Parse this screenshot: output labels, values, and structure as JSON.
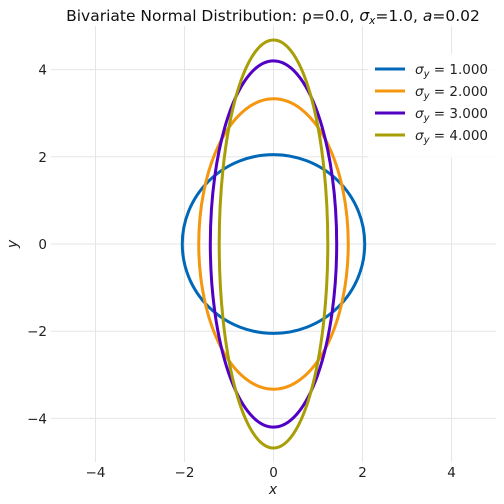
{
  "chart_data": {
    "type": "line",
    "title": "Bivariate Normal Distribution: ρ=0.0, σₓ=1.0, a=0.02",
    "xlabel": "x",
    "ylabel": "y",
    "xlim": [
      -5.0,
      5.0
    ],
    "ylim": [
      -5.0,
      5.0
    ],
    "xticks": [
      -4,
      -2,
      0,
      2,
      4
    ],
    "yticks": [
      -4,
      -2,
      0,
      2,
      4
    ],
    "xtick_labels": [
      "−4",
      "−2",
      "0",
      "2",
      "4"
    ],
    "ytick_labels": [
      "−4",
      "−2",
      "0",
      "2",
      "4"
    ],
    "grid": true,
    "legend_position": "top-right",
    "series": [
      {
        "name": "σy = 1.000",
        "color": "#0068b8",
        "center": [
          0,
          0
        ],
        "semi_axis_x": 2.05,
        "semi_axis_y": 2.05
      },
      {
        "name": "σy = 2.000",
        "color": "#f5960f",
        "center": [
          0,
          0
        ],
        "semi_axis_x": 1.68,
        "semi_axis_y": 3.33
      },
      {
        "name": "σy = 3.000",
        "color": "#5200c4",
        "center": [
          0,
          0
        ],
        "semi_axis_x": 1.42,
        "semi_axis_y": 4.2
      },
      {
        "name": "σy = 4.000",
        "color": "#a89e05",
        "center": [
          0,
          0
        ],
        "semi_axis_x": 1.22,
        "semi_axis_y": 4.68
      }
    ]
  }
}
